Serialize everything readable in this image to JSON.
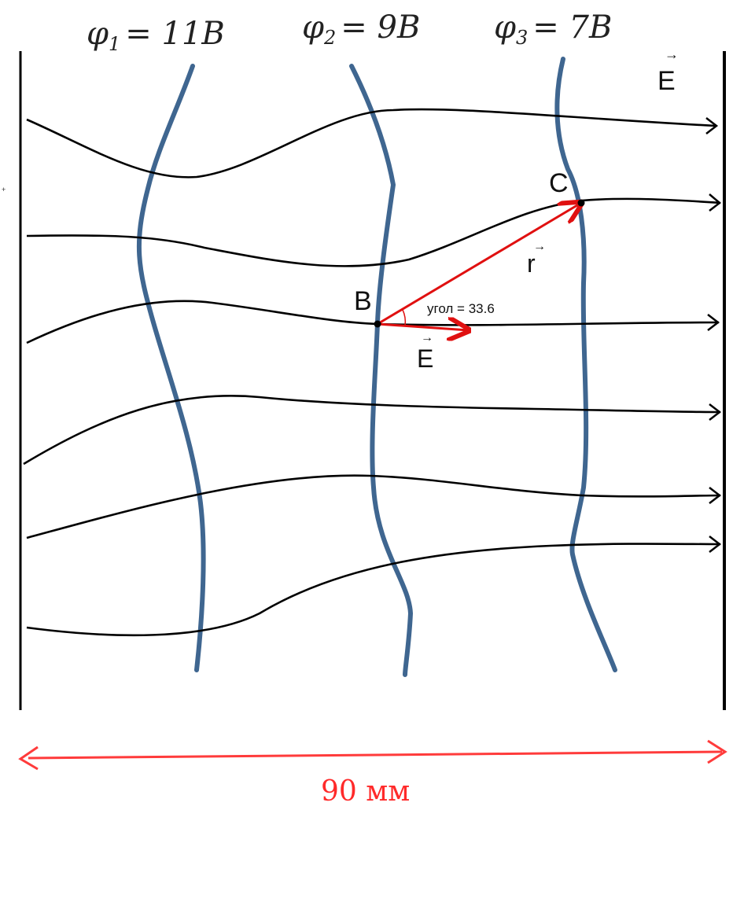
{
  "potentials": [
    {
      "symbol": "φ",
      "index": "1",
      "value": "= 11B"
    },
    {
      "symbol": "φ",
      "index": "2",
      "value": "= 9B"
    },
    {
      "symbol": "φ",
      "index": "3",
      "value": "= 7B"
    }
  ],
  "vector_E_label": "E",
  "vector_r_label": "r",
  "point_B_label": "B",
  "point_C_label": "C",
  "angle_label": "угол = 33.6",
  "vector_E_label_small": "E",
  "dimension_label": "90 мм",
  "small_mark": "+",
  "colors": {
    "field_line": "#000000",
    "equipotential": "#3f6690",
    "vector": "#e01010",
    "dimension": "#ff3b3b"
  }
}
